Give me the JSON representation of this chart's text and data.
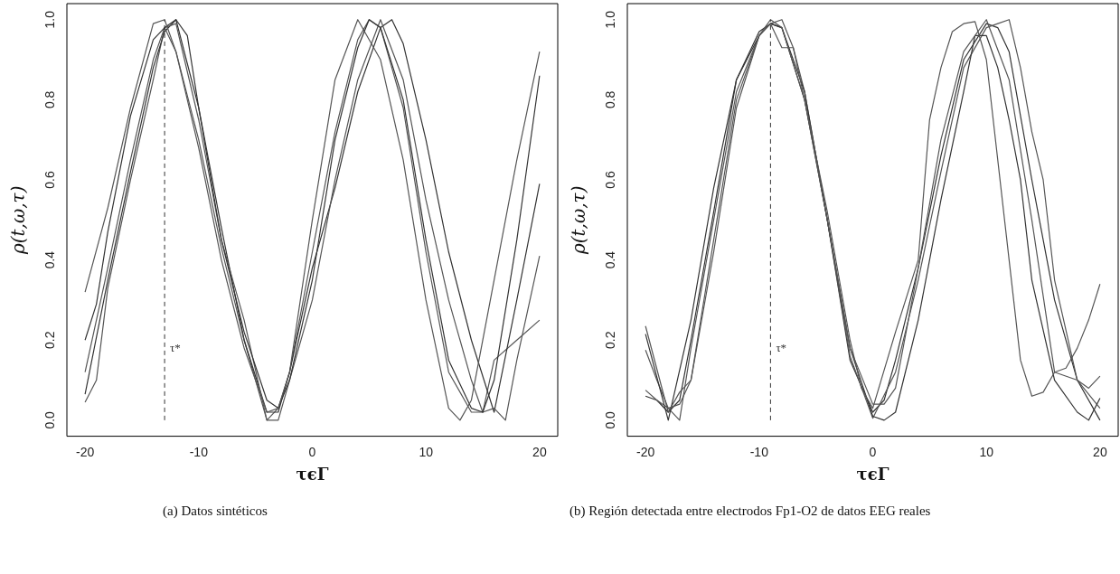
{
  "chart_data": [
    {
      "type": "line",
      "xlabel": "τϵΓ",
      "ylabel": "ρ(t,ω,τ)",
      "xlim": [
        -21.6,
        21.6
      ],
      "ylim": [
        -0.04,
        1.04
      ],
      "xticks": [
        -20,
        -10,
        0,
        10,
        20
      ],
      "yticks": [
        {
          "value": 0,
          "label": "0.0"
        },
        {
          "value": 0.2,
          "label": "0.2"
        },
        {
          "value": 0.4,
          "label": "0.4"
        },
        {
          "value": 0.6,
          "label": "0.6"
        },
        {
          "value": 0.8,
          "label": "0.8"
        },
        {
          "value": 1,
          "label": "1.0"
        }
      ],
      "grid": false,
      "legend": false,
      "marker": "none",
      "line_style": "solid",
      "ref_lines": [
        {
          "axis": "x",
          "value": -13,
          "label": "τ*",
          "line_style": "dashed",
          "color": "#333333"
        }
      ],
      "annotations": [
        "(a) Datos sintéticos"
      ],
      "series": [
        {
          "color": "#555555",
          "x": [
            -20,
            -18,
            -16,
            -14,
            -13,
            -12,
            -10,
            -8,
            -6,
            -4,
            -3,
            -2,
            0,
            2,
            4,
            6,
            8,
            10,
            12,
            13,
            14,
            16,
            18,
            20
          ],
          "values": [
            0.32,
            0.53,
            0.78,
            0.99,
            1.0,
            0.92,
            0.68,
            0.4,
            0.18,
            0.02,
            0.03,
            0.12,
            0.5,
            0.85,
            1.0,
            0.9,
            0.65,
            0.3,
            0.03,
            0.0,
            0.05,
            0.35,
            0.65,
            0.92
          ]
        },
        {
          "color": "#333333",
          "x": [
            -20,
            -19,
            -18,
            -16,
            -14,
            -13,
            -12,
            -11,
            -10,
            -8,
            -6,
            -4,
            -3,
            -2,
            0,
            2,
            4,
            5,
            6,
            8,
            10,
            12,
            14,
            15,
            16,
            18,
            20
          ],
          "values": [
            0.2,
            0.29,
            0.47,
            0.76,
            0.95,
            0.98,
            1.0,
            0.96,
            0.78,
            0.45,
            0.22,
            0.05,
            0.03,
            0.1,
            0.35,
            0.7,
            0.93,
            1.0,
            0.98,
            0.8,
            0.45,
            0.15,
            0.03,
            0.02,
            0.1,
            0.45,
            0.86
          ]
        },
        {
          "color": "#555555",
          "x": [
            -20,
            -18,
            -16,
            -14,
            -13,
            -12,
            -10,
            -8,
            -6,
            -4,
            -3,
            -2,
            0,
            2,
            4,
            6,
            8,
            10,
            12,
            14,
            15,
            16,
            17,
            18,
            20
          ],
          "values": [
            0.12,
            0.38,
            0.65,
            0.9,
            0.98,
            0.99,
            0.75,
            0.45,
            0.25,
            0.0,
            0.0,
            0.1,
            0.3,
            0.6,
            0.85,
            1.0,
            0.85,
            0.55,
            0.3,
            0.1,
            0.02,
            0.03,
            0.0,
            0.15,
            0.41
          ]
        },
        {
          "color": "#333333",
          "x": [
            -20,
            -18,
            -16,
            -14,
            -13,
            -12,
            -10,
            -8,
            -6,
            -4,
            -3,
            -2,
            0,
            2,
            4,
            6,
            7,
            8,
            10,
            12,
            14,
            16,
            18,
            20
          ],
          "values": [
            0.065,
            0.35,
            0.62,
            0.88,
            0.97,
            1.0,
            0.78,
            0.48,
            0.2,
            0.02,
            0.02,
            0.12,
            0.38,
            0.58,
            0.82,
            0.98,
            1.0,
            0.94,
            0.7,
            0.42,
            0.2,
            0.02,
            0.3,
            0.59
          ]
        },
        {
          "color": "#555555",
          "x": [
            -20,
            -19,
            -18,
            -16,
            -14,
            -13,
            -12,
            -10,
            -8,
            -6,
            -4,
            -3,
            -2,
            0,
            2,
            4,
            5,
            6,
            8,
            10,
            12,
            14,
            15,
            16,
            18,
            20
          ],
          "values": [
            0.045,
            0.1,
            0.33,
            0.6,
            0.85,
            0.98,
            0.92,
            0.7,
            0.43,
            0.2,
            0.0,
            0.03,
            0.12,
            0.42,
            0.72,
            0.95,
            1.0,
            0.98,
            0.78,
            0.42,
            0.12,
            0.02,
            0.02,
            0.15,
            0.2,
            0.25
          ]
        }
      ]
    },
    {
      "type": "line",
      "xlabel": "τϵΓ",
      "ylabel": "ρ(t,ω,τ)",
      "xlim": [
        -21.6,
        21.6
      ],
      "ylim": [
        -0.04,
        1.04
      ],
      "xticks": [
        -20,
        -10,
        0,
        10,
        20
      ],
      "yticks": [
        {
          "value": 0,
          "label": "0.0"
        },
        {
          "value": 0.2,
          "label": "0.2"
        },
        {
          "value": 0.4,
          "label": "0.4"
        },
        {
          "value": 0.6,
          "label": "0.6"
        },
        {
          "value": 0.8,
          "label": "0.8"
        },
        {
          "value": 1,
          "label": "1.0"
        }
      ],
      "grid": false,
      "legend": false,
      "marker": "none",
      "line_style": "solid",
      "ref_lines": [
        {
          "axis": "x",
          "value": -9,
          "label": "τ*",
          "line_style": "dashed",
          "color": "#333333"
        }
      ],
      "annotations": [
        "(b) Región detectada entre electrodos Fp1-O2 de datos EEG reales"
      ],
      "series": [
        {
          "color": "#555555",
          "x": [
            -20,
            -19,
            -18,
            -17,
            -16,
            -14,
            -12,
            -10,
            -9,
            -8,
            -6,
            -4,
            -2,
            0,
            1,
            2,
            4,
            6,
            8,
            9,
            10,
            12,
            14,
            16,
            18,
            19,
            20
          ],
          "values": [
            0.075,
            0.05,
            0.03,
            0.04,
            0.1,
            0.42,
            0.78,
            0.96,
            1.0,
            0.98,
            0.8,
            0.5,
            0.18,
            0.04,
            0.04,
            0.08,
            0.38,
            0.7,
            0.92,
            0.96,
            1.0,
            0.85,
            0.5,
            0.12,
            0.1,
            0.08,
            0.11
          ]
        },
        {
          "color": "#555555",
          "x": [
            -20,
            -18,
            -17,
            -16,
            -14,
            -12,
            -10,
            -9,
            -8,
            -7,
            -6,
            -4,
            -2,
            -1,
            0,
            2,
            4,
            5,
            6,
            7,
            8,
            9,
            10,
            12,
            13,
            14,
            15,
            16,
            17,
            18,
            19,
            20
          ],
          "values": [
            0.235,
            0.02,
            0.07,
            0.1,
            0.45,
            0.8,
            0.96,
            0.99,
            0.93,
            0.93,
            0.8,
            0.52,
            0.2,
            0.08,
            0.03,
            0.22,
            0.4,
            0.75,
            0.88,
            0.97,
            0.99,
            0.995,
            0.9,
            0.4,
            0.15,
            0.06,
            0.07,
            0.12,
            0.13,
            0.18,
            0.25,
            0.34
          ]
        },
        {
          "color": "#333333",
          "x": [
            -20,
            -18,
            -16,
            -14,
            -12,
            -10,
            -9,
            -8,
            -6,
            -4,
            -2,
            0,
            1,
            2,
            4,
            6,
            8,
            9,
            10,
            11,
            12,
            13,
            14,
            16,
            18,
            19,
            20
          ],
          "values": [
            0.215,
            0.0,
            0.25,
            0.58,
            0.85,
            0.96,
            0.99,
            0.98,
            0.82,
            0.5,
            0.18,
            0.01,
            0.0,
            0.02,
            0.25,
            0.55,
            0.82,
            0.96,
            0.96,
            0.88,
            0.75,
            0.6,
            0.35,
            0.1,
            0.02,
            0.0,
            0.055
          ]
        },
        {
          "color": "#555555",
          "x": [
            -20,
            -19,
            -18,
            -17,
            -16,
            -14,
            -12,
            -10,
            -9,
            -8,
            -7,
            -6,
            -4,
            -2,
            0,
            2,
            4,
            6,
            8,
            10,
            11,
            12,
            13,
            14,
            15,
            16,
            18,
            20
          ],
          "values": [
            0.175,
            0.1,
            0.03,
            0.0,
            0.18,
            0.5,
            0.82,
            0.96,
            0.99,
            1.0,
            0.93,
            0.82,
            0.5,
            0.16,
            0.005,
            0.12,
            0.35,
            0.62,
            0.88,
            0.98,
            0.99,
            1.0,
            0.88,
            0.72,
            0.6,
            0.35,
            0.1,
            0.03
          ]
        },
        {
          "color": "#333333",
          "x": [
            -20,
            -19,
            -18,
            -17,
            -16,
            -14,
            -12,
            -10,
            -9,
            -8,
            -6,
            -4,
            -2,
            0,
            1,
            2,
            4,
            6,
            8,
            10,
            11,
            12,
            14,
            16,
            18,
            20
          ],
          "values": [
            0.06,
            0.05,
            0.02,
            0.05,
            0.2,
            0.52,
            0.85,
            0.97,
            0.99,
            0.98,
            0.8,
            0.5,
            0.15,
            0.02,
            0.05,
            0.15,
            0.38,
            0.66,
            0.9,
            0.99,
            0.98,
            0.92,
            0.6,
            0.3,
            0.1,
            0.0
          ]
        }
      ]
    }
  ]
}
